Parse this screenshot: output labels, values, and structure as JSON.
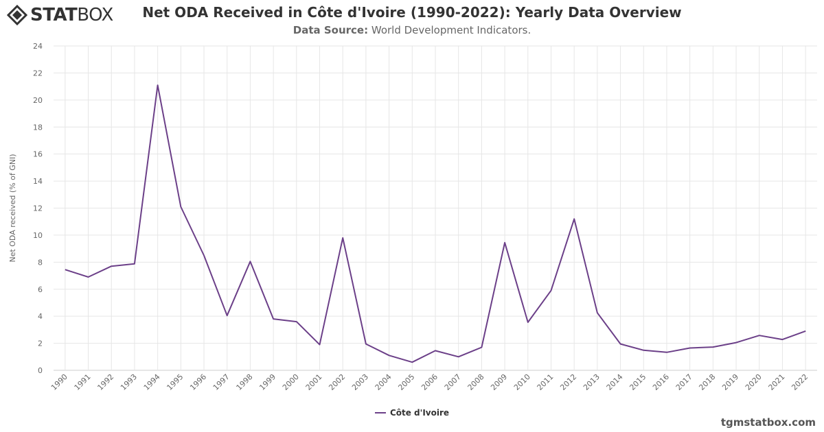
{
  "brand": {
    "logo_bold": "STAT",
    "logo_light": "BOX",
    "footer": "tgmstatbox.com"
  },
  "header": {
    "title": "Net ODA Received in Côte d'Ivoire (1990-2022): Yearly Data Overview",
    "source_label": "Data Source:",
    "source_value": "World Development Indicators."
  },
  "colors": {
    "series": "#6b3f88",
    "grid": "#e6e6e6",
    "axis": "#cccccc"
  },
  "chart_data": {
    "type": "line",
    "title": "Net ODA Received in Côte d'Ivoire (1990-2022): Yearly Data Overview",
    "ylabel": "Net ODA received (% of GNI)",
    "xlabel": "",
    "ylim": [
      0,
      24
    ],
    "yticks": [
      0,
      2,
      4,
      6,
      8,
      10,
      12,
      14,
      16,
      18,
      20,
      22,
      24
    ],
    "grid": true,
    "legend_position": "bottom-center",
    "x": [
      "1990",
      "1991",
      "1992",
      "1993",
      "1994",
      "1995",
      "1996",
      "1997",
      "1998",
      "1999",
      "2000",
      "2001",
      "2002",
      "2003",
      "2004",
      "2005",
      "2006",
      "2007",
      "2008",
      "2009",
      "2010",
      "2011",
      "2012",
      "2013",
      "2014",
      "2015",
      "2016",
      "2017",
      "2018",
      "2019",
      "2020",
      "2021",
      "2022"
    ],
    "series": [
      {
        "name": "Côte d'Ivoire",
        "values": [
          7.45,
          6.9,
          7.7,
          7.88,
          21.1,
          12.1,
          8.5,
          4.05,
          8.05,
          3.8,
          3.6,
          1.9,
          9.8,
          1.95,
          1.1,
          0.6,
          1.45,
          1.0,
          1.7,
          9.45,
          3.55,
          5.9,
          11.2,
          4.25,
          1.95,
          1.48,
          1.33,
          1.65,
          1.72,
          2.05,
          2.58,
          2.28,
          2.9
        ]
      }
    ]
  }
}
